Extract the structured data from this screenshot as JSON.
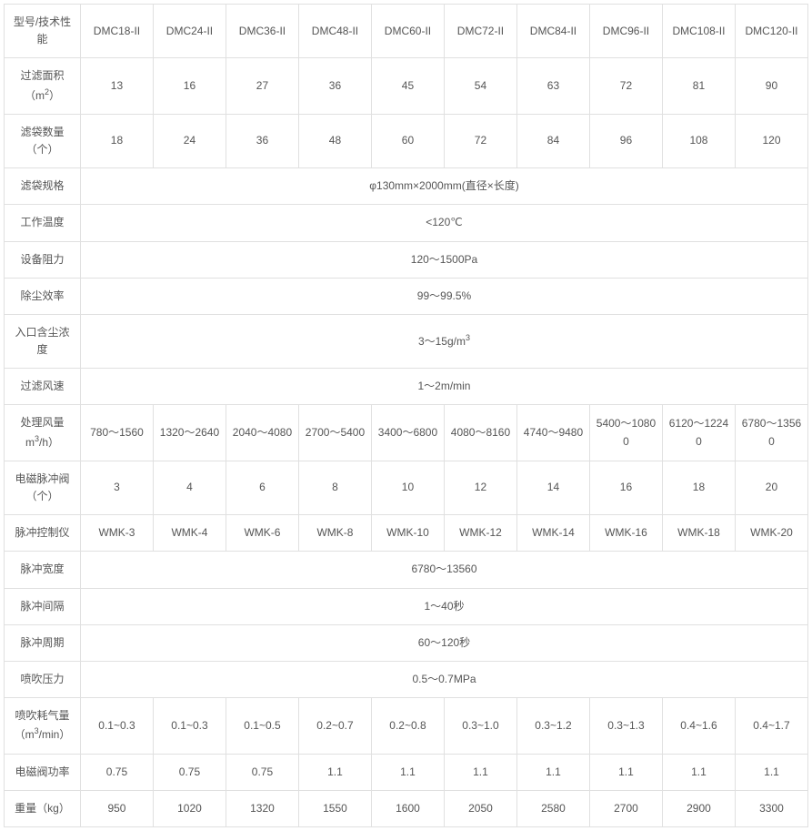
{
  "colors": {
    "border": "#e0e0e0",
    "text": "#555555",
    "background": "#ffffff"
  },
  "typography": {
    "font_family": "Arial, Microsoft YaHei, sans-serif",
    "font_size_pt": 9,
    "line_height": 1.6
  },
  "models": [
    "DMC18-II",
    "DMC24-II",
    "DMC36-II",
    "DMC48-II",
    "DMC60-II",
    "DMC72-II",
    "DMC84-II",
    "DMC96-II",
    "DMC108-II",
    "DMC120-II"
  ],
  "row_model_label": "型号/技术性能",
  "rows": {
    "filter_area": {
      "label": "过滤面积（m²）",
      "values": [
        "13",
        "16",
        "27",
        "36",
        "45",
        "54",
        "63",
        "72",
        "81",
        "90"
      ]
    },
    "bag_count": {
      "label": "滤袋数量（个）",
      "values": [
        "18",
        "24",
        "36",
        "48",
        "60",
        "72",
        "84",
        "96",
        "108",
        "120"
      ]
    },
    "bag_spec": {
      "label": "滤袋规格",
      "span": "φ130mm×2000mm(直径×长度)"
    },
    "work_temp": {
      "label": "工作温度",
      "span": "<120℃"
    },
    "resistance": {
      "label": "设备阻力",
      "span": "120～1500Pa"
    },
    "dust_eff": {
      "label": "除尘效率",
      "span": "99～99.5%"
    },
    "inlet_conc": {
      "label": "入口含尘浓度",
      "span": "3～15g/m³"
    },
    "filter_speed": {
      "label": "过滤风速",
      "span": "1～2m/min"
    },
    "air_volume": {
      "label": "处理风量m³/h）",
      "values": [
        "780～1560",
        "1320～2640",
        "2040～4080",
        "2700～5400",
        "3400～6800",
        "4080～8160",
        "4740～9480",
        "5400～10800",
        "6120～12240",
        "6780～13560"
      ]
    },
    "pulse_valve": {
      "label": "电磁脉冲阀（个）",
      "values": [
        "3",
        "4",
        "6",
        "8",
        "10",
        "12",
        "14",
        "16",
        "18",
        "20"
      ]
    },
    "pulse_controller": {
      "label": "脉冲控制仪",
      "values": [
        "WMK-3",
        "WMK-4",
        "WMK-6",
        "WMK-8",
        "WMK-10",
        "WMK-12",
        "WMK-14",
        "WMK-16",
        "WMK-18",
        "WMK-20"
      ]
    },
    "pulse_width": {
      "label": "脉冲宽度",
      "span": "6780～13560"
    },
    "pulse_interval": {
      "label": "脉冲间隔",
      "span": "1～40秒"
    },
    "pulse_period": {
      "label": "脉冲周期",
      "span": "60～120秒"
    },
    "blow_pressure": {
      "label": "喷吹压力",
      "span": "0.5～0.7MPa"
    },
    "air_consumption": {
      "label": "喷吹耗气量（m³/min）",
      "values": [
        "0.1~0.3",
        "0.1~0.3",
        "0.1~0.5",
        "0.2~0.7",
        "0.2~0.8",
        "0.3~1.0",
        "0.3~1.2",
        "0.3~1.3",
        "0.4~1.6",
        "0.4~1.7"
      ]
    },
    "valve_power": {
      "label": "电磁阀功率",
      "values": [
        "0.75",
        "0.75",
        "0.75",
        "1.1",
        "1.1",
        "1.1",
        "1.1",
        "1.1",
        "1.1",
        "1.1"
      ]
    },
    "weight": {
      "label": "重量（kg）",
      "values": [
        "950",
        "1020",
        "1320",
        "1550",
        "1600",
        "2050",
        "2580",
        "2700",
        "2900",
        "3300"
      ]
    }
  },
  "row_order": [
    "filter_area",
    "bag_count",
    "bag_spec",
    "work_temp",
    "resistance",
    "dust_eff",
    "inlet_conc",
    "filter_speed",
    "air_volume",
    "pulse_valve",
    "pulse_controller",
    "pulse_width",
    "pulse_interval",
    "pulse_period",
    "blow_pressure",
    "air_consumption",
    "valve_power",
    "weight"
  ],
  "label_html": {
    "filter_area": "过滤面积<br>（m<sup>2</sup>）",
    "bag_count": "滤袋数量<br>（个）",
    "inlet_conc": "入口含尘浓<br>度",
    "air_volume": "处理风量<br>m<sup>3</sup>/h）",
    "pulse_valve": "电磁脉冲阀<br>（个）",
    "air_consumption": "喷吹耗气量<br>（m<sup>3</sup>/min）"
  },
  "span_html": {
    "inlet_conc": "3～15g/m<sup>3</sup>"
  }
}
